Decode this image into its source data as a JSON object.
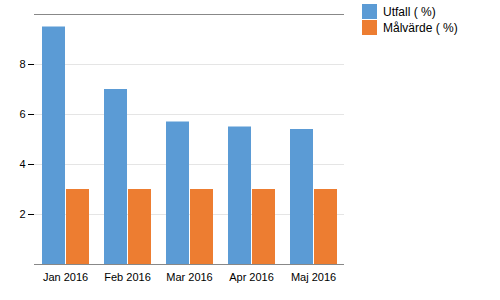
{
  "chart_data": {
    "type": "bar",
    "categories": [
      "Jan 2016",
      "Feb 2016",
      "Mar 2016",
      "Apr 2016",
      "Maj 2016"
    ],
    "series": [
      {
        "name": "Utfall ( %)",
        "color": "#5B9BD5",
        "values": [
          9.5,
          7.0,
          5.7,
          5.5,
          5.4
        ]
      },
      {
        "name": "Målvärde ( %)",
        "color": "#ED7D31",
        "values": [
          3.0,
          3.0,
          3.0,
          3.0,
          3.0
        ]
      }
    ],
    "ylim": [
      0,
      10
    ],
    "yticks": [
      2,
      4,
      6,
      8
    ],
    "grid": true,
    "legend": "upper right"
  }
}
